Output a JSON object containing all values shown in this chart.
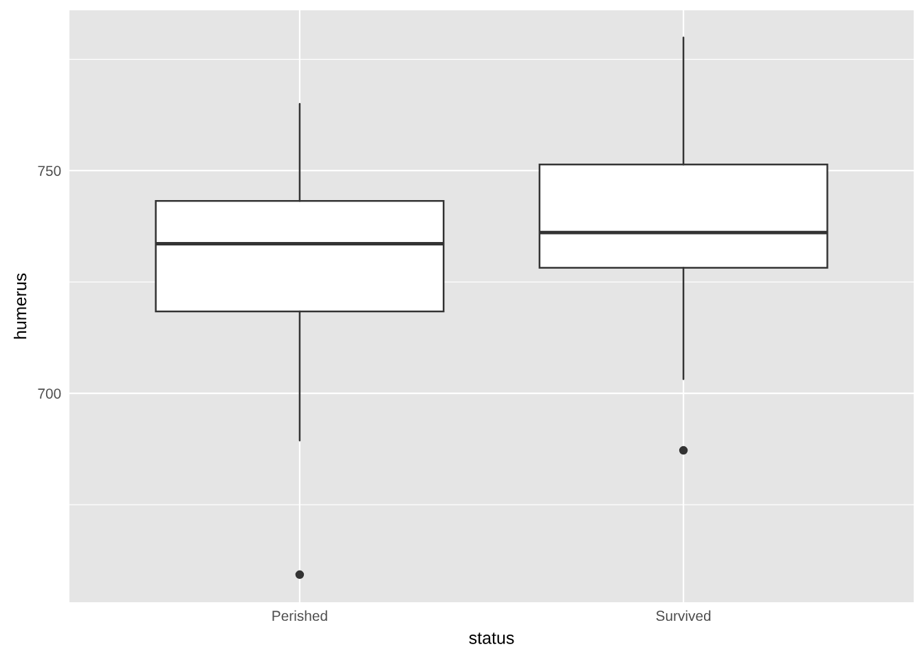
{
  "chart_data": {
    "type": "box",
    "xlabel": "status",
    "ylabel": "humerus",
    "categories": [
      "Perished",
      "Survived"
    ],
    "boxes": [
      {
        "low": 689.4,
        "q1": 718.4,
        "median": 733.6,
        "q3": 743.2,
        "high": 765.0,
        "outliers": [
          659.3
        ]
      },
      {
        "low": 703.2,
        "q1": 728.2,
        "median": 736.1,
        "q3": 751.4,
        "high": 779.9,
        "outliers": [
          687.2
        ]
      }
    ],
    "ylim": [
      653.1,
      786.0
    ],
    "yticks": [
      700,
      750
    ],
    "grid": true
  }
}
